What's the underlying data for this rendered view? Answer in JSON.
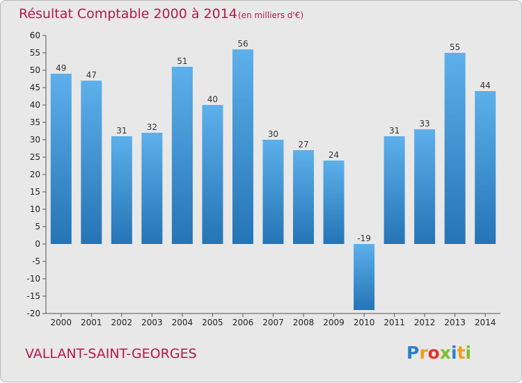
{
  "chart_data": {
    "type": "bar",
    "title": "Résultat Comptable 2000 à 2014",
    "subtitle": "(en milliers d'€)",
    "categories": [
      "2000",
      "2001",
      "2002",
      "2003",
      "2004",
      "2005",
      "2006",
      "2007",
      "2008",
      "2009",
      "2010",
      "2011",
      "2012",
      "2013",
      "2014"
    ],
    "values": [
      49,
      47,
      31,
      32,
      51,
      40,
      56,
      30,
      27,
      24,
      -19,
      31,
      33,
      55,
      44
    ],
    "ylim": [
      -20,
      60
    ],
    "yticks": [
      -20,
      -15,
      -10,
      -5,
      0,
      5,
      10,
      15,
      20,
      25,
      30,
      35,
      40,
      45,
      50,
      55,
      60
    ],
    "xlabel": "",
    "ylabel": "",
    "grid": false
  },
  "commune": "VALLANT-SAINT-GEORGES",
  "logo": {
    "text": "Proxiti",
    "letters": [
      "P",
      "r",
      "o",
      "x",
      "i",
      "t",
      "i"
    ],
    "colors": [
      "#2a7fcf",
      "#f29d1f",
      "#e2342d",
      "#7fbf2a",
      "#2a7fcf",
      "#f29d1f",
      "#7fbf2a"
    ]
  },
  "colors": {
    "title": "#b9174a",
    "bar_top": "#5db0ea",
    "bar_bottom": "#2574b6",
    "background": "#e8e8e8"
  }
}
